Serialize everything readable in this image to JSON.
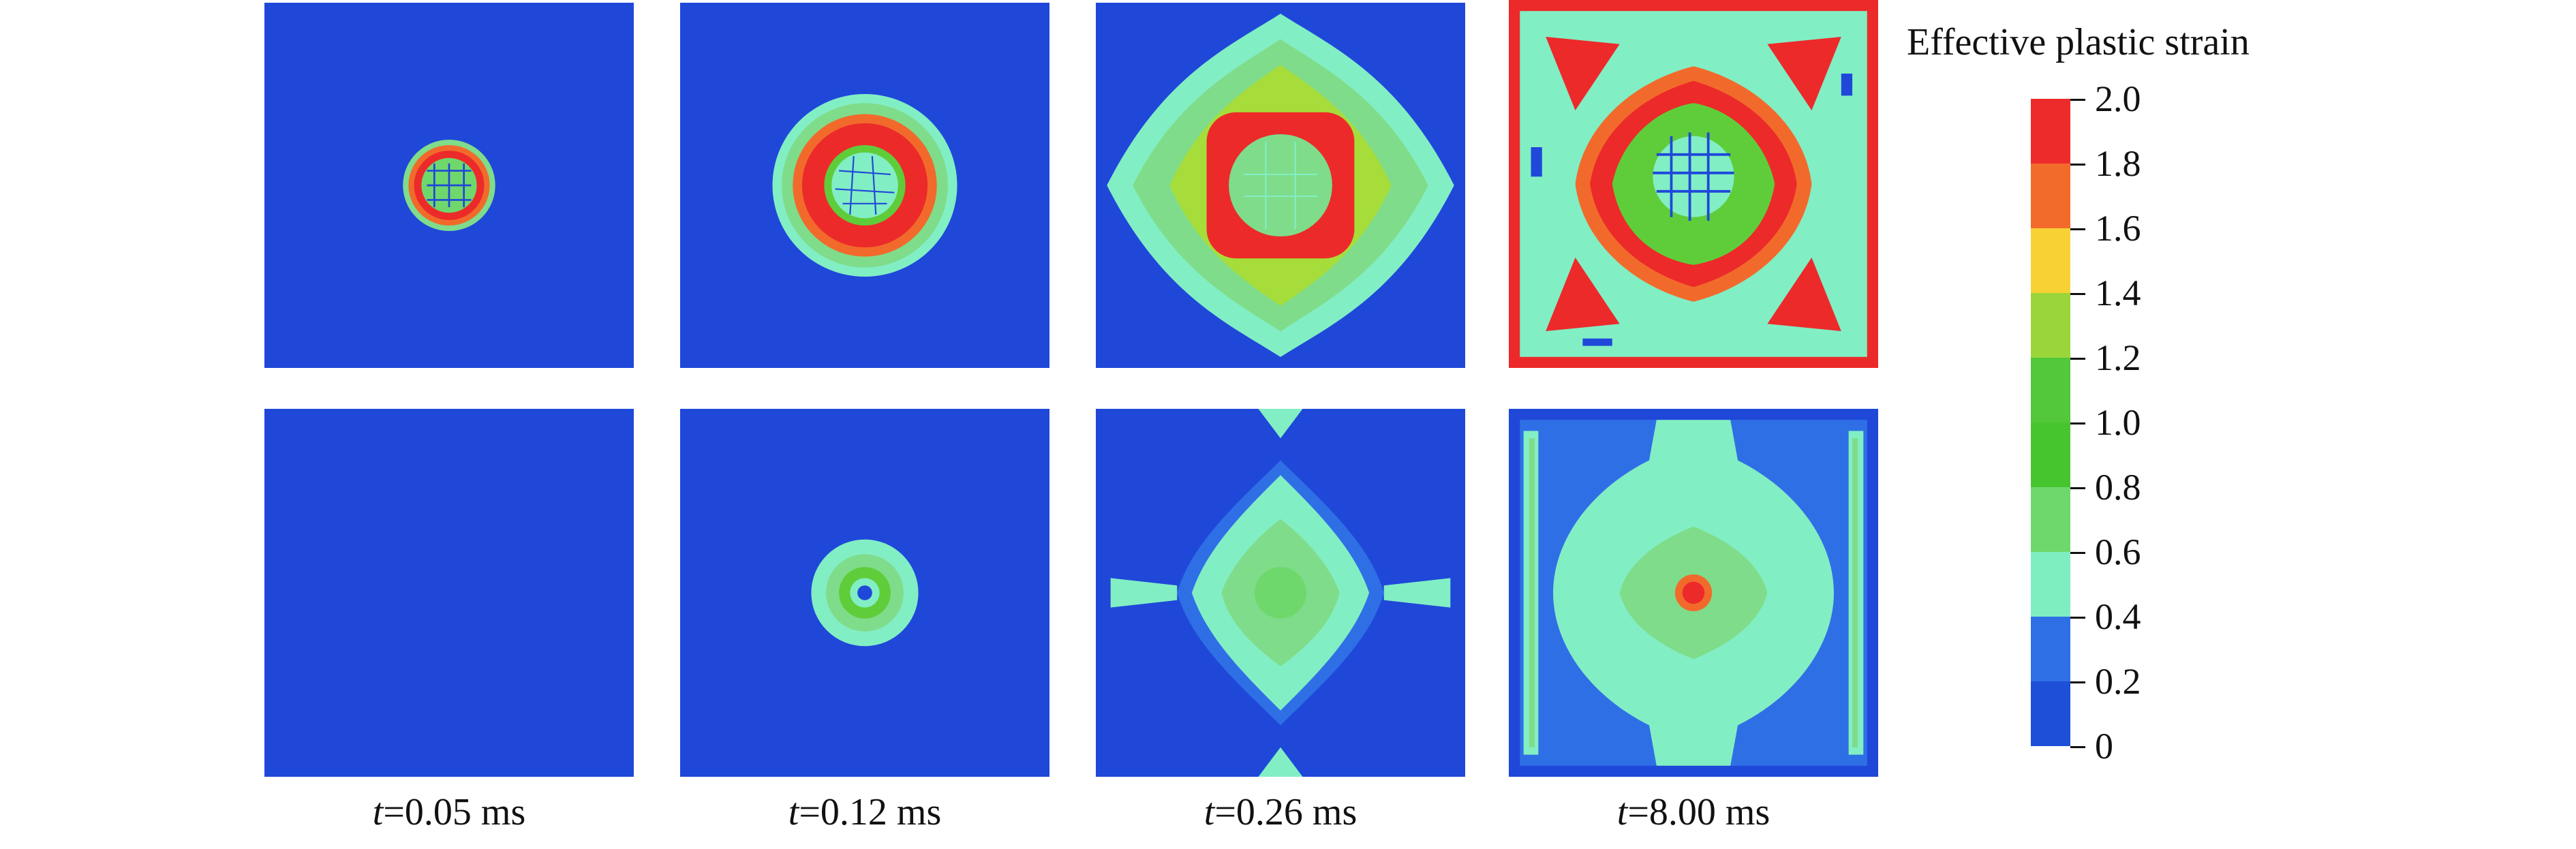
{
  "colorbar": {
    "title": "Effective plastic strain",
    "ticks": [
      "2.0",
      "1.8",
      "1.6",
      "1.4",
      "1.2",
      "1.0",
      "0.8",
      "0.6",
      "0.4",
      "0.2",
      "0"
    ],
    "band_colors": [
      "#ee2b2b",
      "#f36b2a",
      "#f7d235",
      "#9ad63a",
      "#52c83a",
      "#47c52f",
      "#6fd86c",
      "#7eeec0",
      "#2f6fe6",
      "#1d4fd8"
    ]
  },
  "panel_colors": {
    "background": "#1f48d9",
    "cyan": "#82eec4",
    "light_green": "#7fdc8a",
    "green": "#5fcd3a",
    "lime": "#a6dd3b",
    "yellow": "#f4d23a",
    "orange": "#f26a2b",
    "red": "#ec2a2a"
  },
  "captions": [
    {
      "var": "t",
      "value": "=0.05 ms"
    },
    {
      "var": "t",
      "value": "=0.12 ms"
    },
    {
      "var": "t",
      "value": "=0.26 ms"
    },
    {
      "var": "t",
      "value": "=8.00 ms"
    }
  ]
}
